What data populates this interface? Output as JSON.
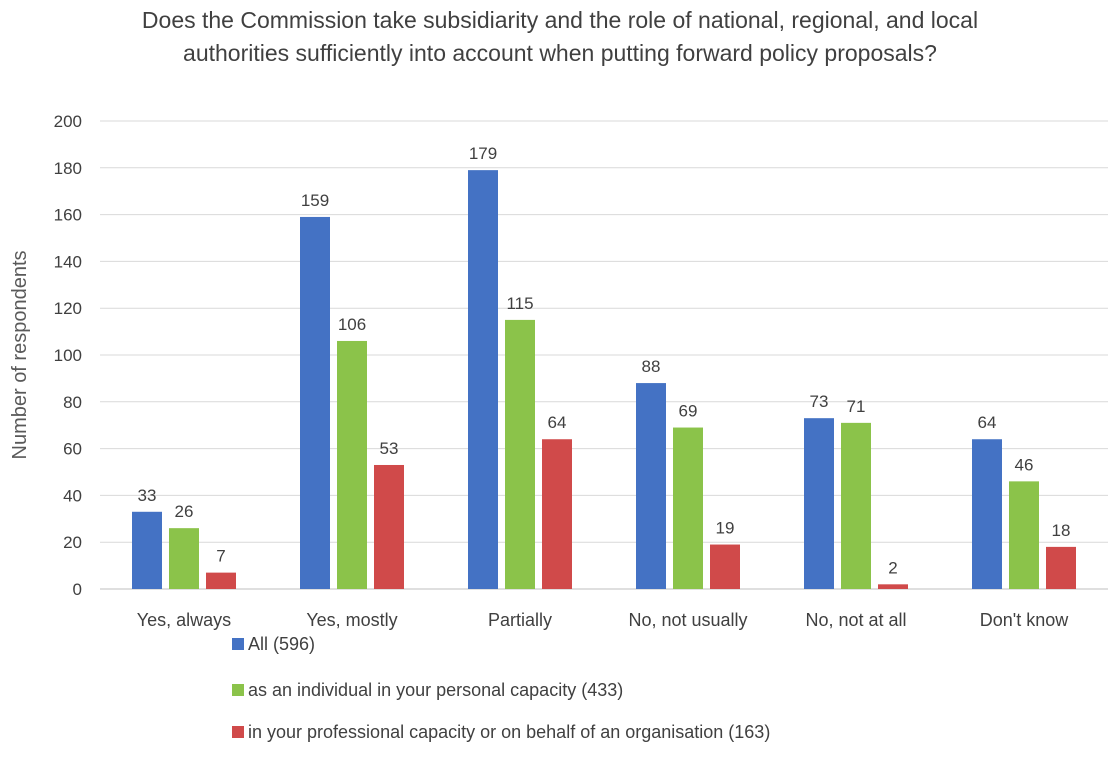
{
  "chart_data": {
    "type": "bar",
    "title": "Does the Commission take subsidiarity and the role of national, regional, and local authorities sufficiently into account when putting forward policy proposals?",
    "ylabel": "Number of respondents",
    "xlabel": "",
    "ylim": [
      0,
      200
    ],
    "yticks": [
      0,
      20,
      40,
      60,
      80,
      100,
      120,
      140,
      160,
      180,
      200
    ],
    "grid": true,
    "legend_position": "bottom-left",
    "categories": [
      "Yes, always",
      "Yes, mostly",
      "Partially",
      "No, not usually",
      "No, not at all",
      "Don't know"
    ],
    "series": [
      {
        "name": "All  (596)",
        "color": "#4472C4",
        "values": [
          33,
          159,
          179,
          88,
          73,
          64
        ]
      },
      {
        "name": "as an individual in your personal capacity  (433)",
        "color": "#8BC34A",
        "values": [
          26,
          106,
          115,
          69,
          71,
          46
        ]
      },
      {
        "name": "in your professional capacity or on behalf of an organisation  (163)",
        "color": "#D04A4A",
        "values": [
          7,
          53,
          64,
          19,
          2,
          18
        ]
      }
    ]
  }
}
